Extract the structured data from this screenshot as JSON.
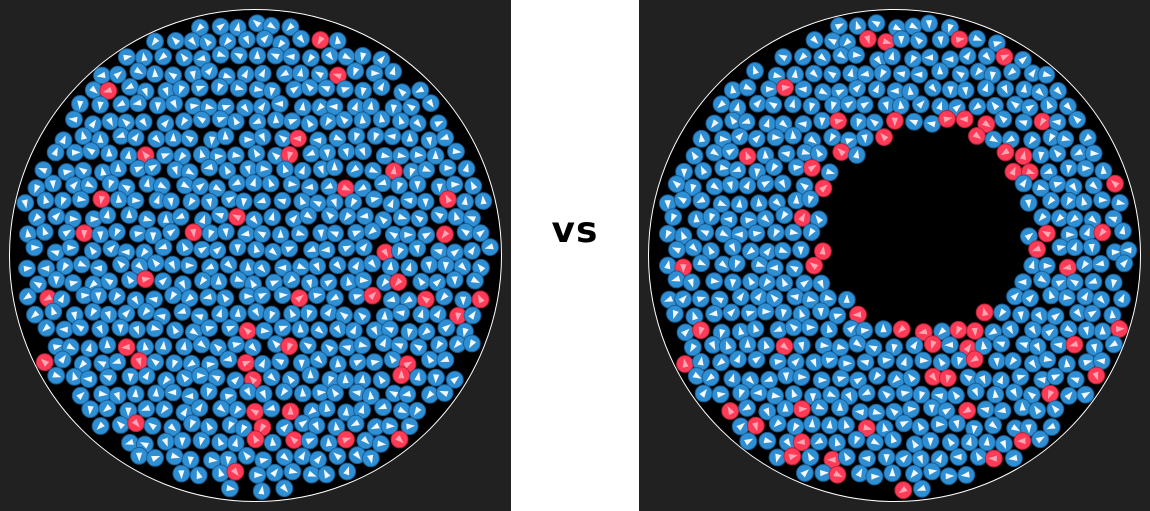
{
  "separator": {
    "label": "vs"
  },
  "colors": {
    "background": "#212121",
    "arena": "#000000",
    "arena_border": "#ffffff",
    "blue_particle": "#2f8fd4",
    "blue_particle_edge": "#1a5f96",
    "red_particle": "#ff3b57",
    "red_particle_edge": "#b8233b",
    "particle_arrow": "#ffffff",
    "divider": "#ffffff"
  },
  "icons": {
    "particle": "triangle-arrow-in-circle"
  },
  "panels": [
    {
      "id": "left",
      "state": "uniform",
      "red_fraction": 0.08,
      "hole": false
    },
    {
      "id": "right",
      "state": "phase-separated",
      "red_fraction": 0.07,
      "hole": true
    }
  ]
}
